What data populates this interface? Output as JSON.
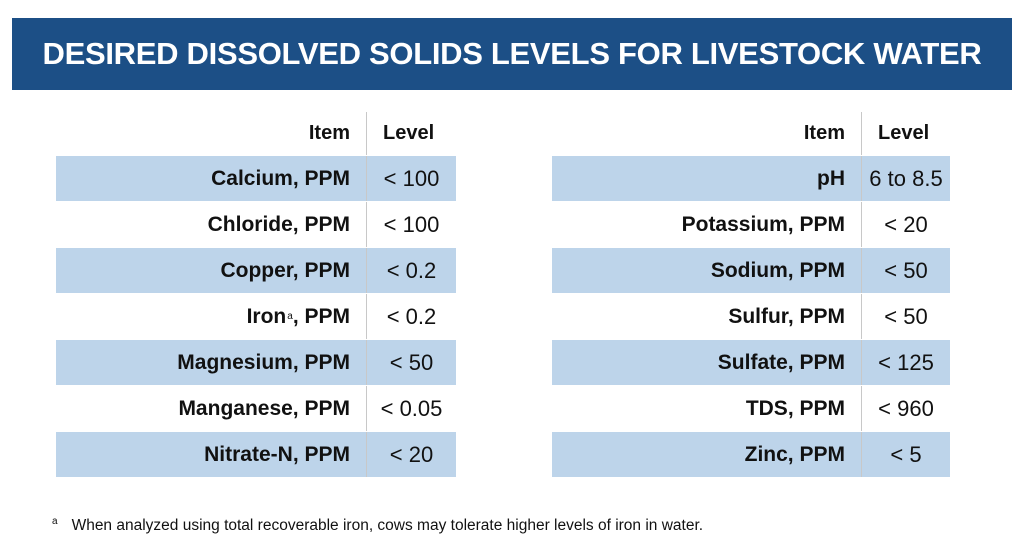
{
  "title": "DESIRED DISSOLVED SOLIDS LEVELS FOR LIVESTOCK WATER",
  "colors": {
    "banner": "#1c4f86",
    "row_shade": "#bdd4ea"
  },
  "left_table": {
    "headers": {
      "item": "Item",
      "level": "Level"
    },
    "rows": [
      {
        "item": "Calcium, PPM",
        "level": "< 100"
      },
      {
        "item": "Chloride, PPM",
        "level": "< 100"
      },
      {
        "item": "Copper, PPM",
        "level": "< 0.2"
      },
      {
        "item": "Iron",
        "item_sup": "a",
        "item_suffix": ", PPM",
        "level": "< 0.2"
      },
      {
        "item": "Magnesium, PPM",
        "level": "< 50"
      },
      {
        "item": "Manganese, PPM",
        "level": "< 0.05"
      },
      {
        "item": "Nitrate-N, PPM",
        "level": "< 20"
      }
    ]
  },
  "right_table": {
    "headers": {
      "item": "Item",
      "level": "Level"
    },
    "rows": [
      {
        "item": "pH",
        "level": "6 to 8.5"
      },
      {
        "item": "Potassium, PPM",
        "level": "< 20"
      },
      {
        "item": "Sodium, PPM",
        "level": "< 50"
      },
      {
        "item": "Sulfur, PPM",
        "level": "< 50"
      },
      {
        "item": "Sulfate, PPM",
        "level": "< 125"
      },
      {
        "item": "TDS, PPM",
        "level": "< 960"
      },
      {
        "item": "Zinc, PPM",
        "level": "< 5"
      }
    ]
  },
  "footnote": {
    "mark": "a",
    "text": "When analyzed using total recoverable iron, cows may tolerate higher levels of iron in water."
  }
}
